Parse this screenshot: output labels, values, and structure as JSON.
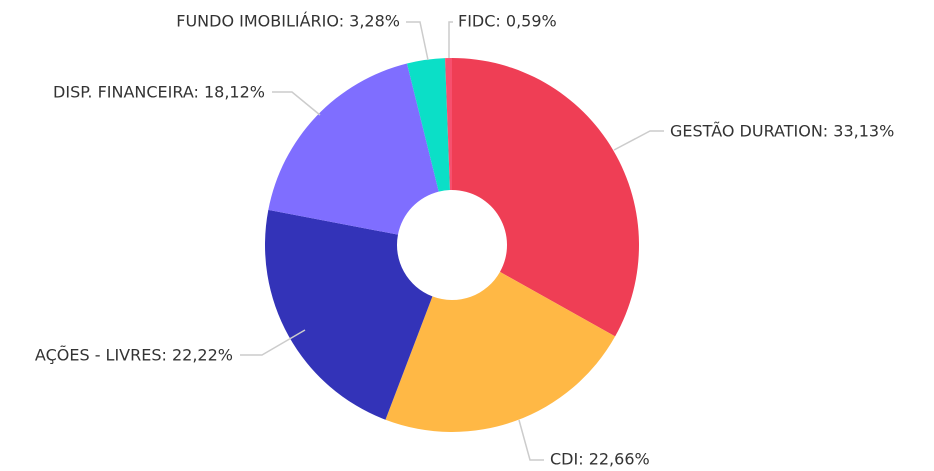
{
  "chart_data": {
    "type": "pie",
    "values": [
      33.13,
      22.66,
      22.22,
      18.12,
      3.28,
      0.59
    ],
    "value_labels": [
      "GESTÃO DURATION: 33,13%",
      "CDI: 22,66%",
      "AÇÕES - LIVRES: 22,22%",
      "DISP. FINANCEIRA: 18,12%",
      "FUNDO IMOBILIÁRIO: 3,28%",
      "FIDC: 0,59%"
    ],
    "colors": [
      "#ef3e55",
      "#ffb845",
      "#3333b8",
      "#7f6eff",
      "#0bdfc7",
      "#f7506e"
    ]
  }
}
